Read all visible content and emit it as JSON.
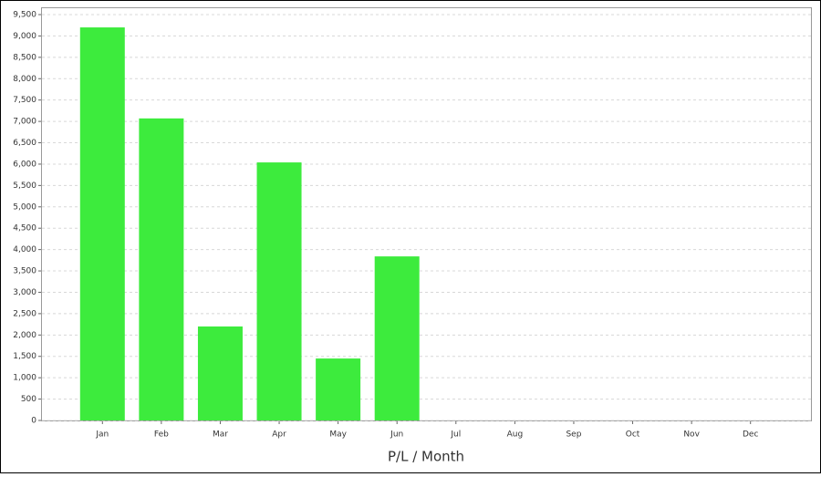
{
  "chart_data": {
    "type": "bar",
    "x_label": "P/L / Month",
    "categories": [
      "Jan",
      "Feb",
      "Mar",
      "Apr",
      "May",
      "Jun",
      "Jul",
      "Aug",
      "Sep",
      "Oct",
      "Nov",
      "Dec"
    ],
    "values": [
      9200,
      7070,
      2200,
      6040,
      1450,
      3840,
      null,
      null,
      null,
      null,
      null,
      null
    ],
    "color": "#3deb3d",
    "ylim": [
      0,
      9500
    ],
    "yticks": [
      0,
      500,
      {
        "value": 1000,
        "label": "1,000"
      },
      {
        "value": 1500,
        "label": "1,500"
      },
      {
        "value": 2000,
        "label": "2,000"
      },
      {
        "value": 2500,
        "label": "2,500"
      },
      {
        "value": 3000,
        "label": "3,000"
      },
      {
        "value": 3500,
        "label": "3,500"
      },
      {
        "value": 4000,
        "label": "4,000"
      },
      {
        "value": 4500,
        "label": "4,500"
      },
      {
        "value": 5000,
        "label": "5,000"
      },
      {
        "value": 5500,
        "label": "5,500"
      },
      {
        "value": 6000,
        "label": "6,000"
      },
      {
        "value": 6500,
        "label": "6,500"
      },
      {
        "value": 7000,
        "label": "7,000"
      },
      {
        "value": 7500,
        "label": "7,500"
      },
      {
        "value": 8000,
        "label": "8,000"
      },
      {
        "value": 8500,
        "label": "8,500"
      },
      {
        "value": 9000,
        "label": "9,000"
      },
      {
        "value": 9500,
        "label": "9,500"
      }
    ],
    "grid": true
  }
}
